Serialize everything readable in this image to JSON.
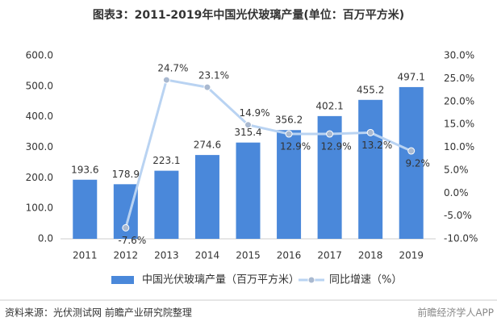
{
  "chart_data": {
    "type": "bar",
    "title": "图表3：2011-2019年中国光伏玻璃产量(单位：百万平方米)",
    "categories": [
      "2011",
      "2012",
      "2013",
      "2014",
      "2015",
      "2016",
      "2017",
      "2018",
      "2019"
    ],
    "series": [
      {
        "name": "中国光伏玻璃产量（百万平方米）",
        "type": "bar",
        "color": "#4a88da",
        "values": [
          193.6,
          178.9,
          223.1,
          274.6,
          315.4,
          356.2,
          402.1,
          455.2,
          497.1
        ]
      },
      {
        "name": "同比增速（%）",
        "type": "line",
        "axis": "y2",
        "color": "#b9d3f2",
        "values": [
          null,
          -7.6,
          24.7,
          23.1,
          14.9,
          12.9,
          12.9,
          13.2,
          9.2
        ],
        "value_labels": [
          null,
          "-7.6%",
          "24.7%",
          "23.1%",
          "14.9%",
          "12.9%",
          "12.9%",
          "13.2%",
          "9.2%"
        ]
      }
    ],
    "ylim": [
      0,
      600
    ],
    "yticks": [
      {
        "value": 0,
        "label": "0.0"
      },
      {
        "value": 100,
        "label": "100.0"
      },
      {
        "value": 200,
        "label": "200.0"
      },
      {
        "value": 300,
        "label": "300.0"
      },
      {
        "value": 400,
        "label": "400.0"
      },
      {
        "value": 500,
        "label": "500.0"
      },
      {
        "value": 600,
        "label": "600.0"
      }
    ],
    "y2lim": [
      -10,
      30
    ],
    "y2ticks": [
      {
        "value": -10,
        "label": "-10.0%"
      },
      {
        "value": -5,
        "label": "-5.0%"
      },
      {
        "value": 0,
        "label": "0.0%"
      },
      {
        "value": 5,
        "label": "5.0%"
      },
      {
        "value": 10,
        "label": "10.0%"
      },
      {
        "value": 15,
        "label": "15.0%"
      },
      {
        "value": 20,
        "label": "20.0%"
      },
      {
        "value": 25,
        "label": "25.0%"
      },
      {
        "value": 30,
        "label": "30.0%"
      }
    ],
    "grid": false
  },
  "footer": {
    "source": "资料来源：光伏测试网 前瞻产业研究院整理",
    "brand": "前瞻经济学人APP"
  }
}
